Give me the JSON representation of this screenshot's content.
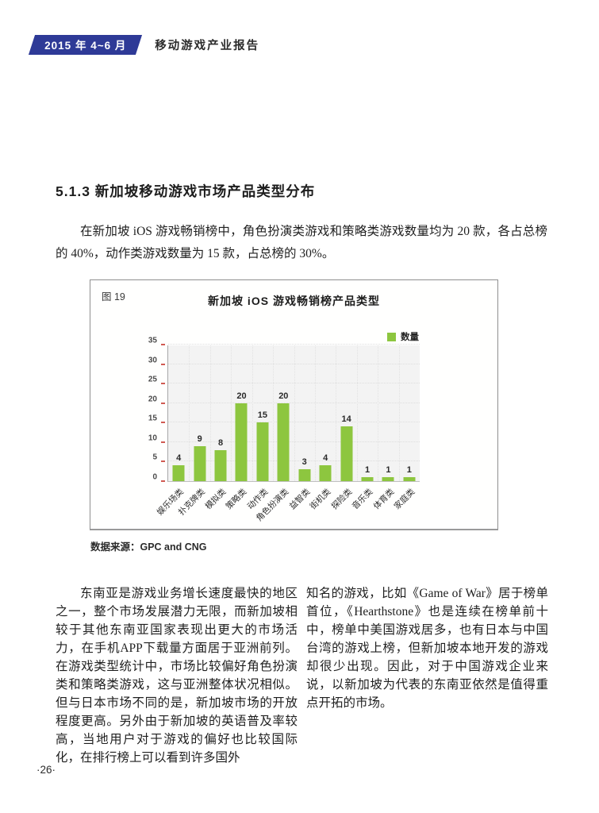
{
  "header": {
    "badge": "2015 年 4~6 月",
    "title": "移动游戏产业报告"
  },
  "section_title": "5.1.3 新加坡移动游戏市场产品类型分布",
  "intro": "在新加坡 iOS 游戏畅销榜中，角色扮演类游戏和策略类游戏数量均为 20 款，各占总榜的 40%，动作类游戏数量为 15 款，占总榜的 30%。",
  "figure": {
    "label": "图 19",
    "title": "新加坡 iOS 游戏畅销榜产品类型",
    "legend": "数量",
    "source": "数据来源：GPC and CNG"
  },
  "columns": {
    "left": "东南亚是游戏业务增长速度最快的地区之一，整个市场发展潜力无限，而新加坡相较于其他东南亚国家表现出更大的市场活力，在手机APP下载量方面居于亚洲前列。在游戏类型统计中，市场比较偏好角色扮演类和策略类游戏，这与亚洲整体状况相似。但与日本市场不同的是，新加坡市场的开放程度更高。另外由于新加坡的英语普及率较高，当地用户对于游戏的偏好也比较国际化，在排行榜上可以看到许多国外",
    "right": "知名的游戏，比如《Game of War》居于榜单首位，《Hearthstone》也是连续在榜单前十中，榜单中美国游戏居多，也有日本与中国台湾的游戏上榜，但新加坡本地开发的游戏却很少出现。因此，对于中国游戏企业来说，以新加坡为代表的东南亚依然是值得重点开拓的市场。"
  },
  "page_number": "·26·",
  "colors": {
    "accent_blue": "#2e3a97",
    "bar_green": "#8dc63f",
    "tick_red": "#d05a52"
  },
  "chart_data": {
    "type": "bar",
    "title": "新加坡 iOS 游戏畅销榜产品类型",
    "categories": [
      "娱乐场类",
      "扑克牌类",
      "模拟类",
      "策略类",
      "动作类",
      "角色扮演类",
      "益智类",
      "街机类",
      "探险类",
      "音乐类",
      "体育类",
      "家庭类"
    ],
    "values": [
      4,
      9,
      8,
      20,
      15,
      20,
      3,
      4,
      14,
      1,
      1,
      1
    ],
    "series_name": "数量",
    "xlabel": "",
    "ylabel": "",
    "ylim": [
      0,
      35
    ],
    "ytick_step": 5,
    "grid": true,
    "legend_position": "top-right"
  }
}
